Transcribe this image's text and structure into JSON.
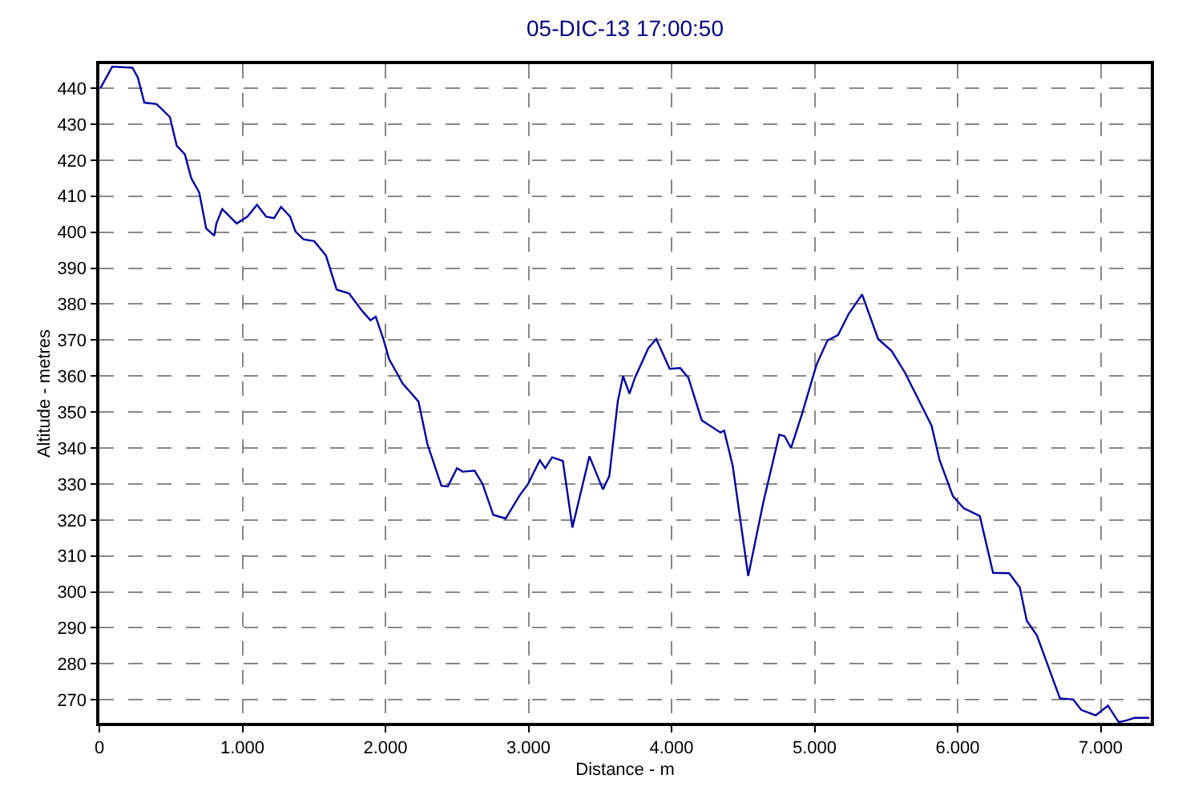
{
  "chart_data": {
    "type": "line",
    "title": "05-DIC-13 17:00:50",
    "xlabel": "Distance - m",
    "ylabel": "Altitude - metres",
    "xlim": [
      0,
      7350
    ],
    "ylim": [
      263.6,
      446.7
    ],
    "xticks": [
      0,
      {
        "value": 1000,
        "label": "1.000"
      },
      {
        "value": 2000,
        "label": "2.000"
      },
      {
        "value": 3000,
        "label": "3.000"
      },
      {
        "value": 4000,
        "label": "4.000"
      },
      {
        "value": 5000,
        "label": "5.000"
      },
      {
        "value": 6000,
        "label": "6.000"
      },
      {
        "value": 7000,
        "label": "7.000"
      }
    ],
    "yticks": [
      270,
      280,
      290,
      300,
      310,
      320,
      330,
      340,
      350,
      360,
      370,
      380,
      390,
      400,
      410,
      420,
      430,
      440
    ],
    "grid": true,
    "marker": "none",
    "line_style": "solid",
    "series": [
      {
        "color": "#0000a0",
        "x": [
          7,
          90,
          231,
          269,
          314,
          400,
          493,
          541,
          598,
          642,
          698,
          747,
          803,
          818,
          859,
          960,
          1035,
          1102,
          1166,
          1222,
          1270,
          1334,
          1371,
          1427,
          1502,
          1584,
          1659,
          1745,
          1839,
          1895,
          1932,
          1988,
          2025,
          2092,
          2119,
          2231,
          2294,
          2391,
          2436,
          2500,
          2541,
          2623,
          2679,
          2754,
          2840,
          2941,
          2997,
          3079,
          3117,
          3165,
          3240,
          3307,
          3426,
          3520,
          3565,
          3624,
          3661,
          3706,
          3744,
          3837,
          3893,
          3987,
          4061,
          4118,
          4211,
          4342,
          4368,
          4428,
          4536,
          4641,
          4753,
          4790,
          4835,
          4910,
          5014,
          5090,
          5164,
          5239,
          5332,
          5444,
          5538,
          5631,
          5818,
          5874,
          5967,
          6042,
          6155,
          6248,
          6360,
          6435,
          6483,
          6554,
          6715,
          6808,
          6864,
          6965,
          7051,
          7126,
          7182,
          7238,
          7339
        ],
        "values": [
          440,
          446,
          445.7,
          443,
          436,
          435.6,
          432,
          424,
          421.6,
          415,
          411,
          401,
          399,
          402.4,
          406.4,
          402.4,
          404.3,
          407.6,
          404.3,
          403.9,
          407,
          404.3,
          400.2,
          398,
          397.5,
          393.5,
          384,
          383,
          378,
          375.5,
          376.5,
          370,
          364.7,
          360,
          358,
          352.9,
          341,
          329.5,
          329.3,
          334.4,
          333.4,
          333.7,
          330,
          321.4,
          320.4,
          327,
          330,
          336.6,
          334.4,
          337.4,
          336.4,
          317.9,
          337.7,
          328.5,
          332.2,
          352.9,
          360,
          355.1,
          359.5,
          367.7,
          370.3,
          362,
          362.2,
          359.5,
          347.7,
          344.3,
          344.8,
          335,
          304.4,
          324.8,
          343.7,
          343.3,
          340,
          349.2,
          363.2,
          369.9,
          371.4,
          377.3,
          382.7,
          370.3,
          367,
          361,
          346.2,
          336.6,
          326.6,
          323.3,
          321.1,
          305.3,
          305.2,
          301.2,
          292,
          287.9,
          270.4,
          270.1,
          267.2,
          265.7,
          268.4,
          263.8,
          264.3,
          265,
          265
        ]
      }
    ]
  }
}
